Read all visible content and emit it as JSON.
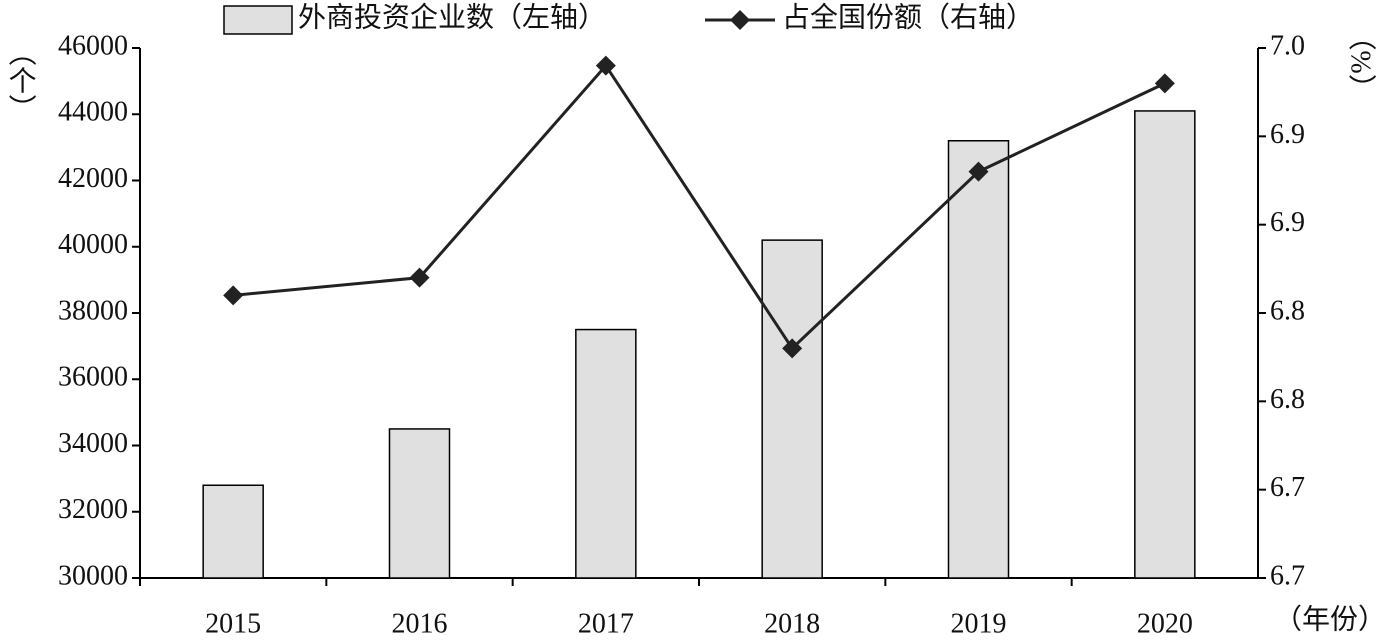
{
  "chart_data": {
    "type": "bar_line",
    "categories": [
      "2015",
      "2016",
      "2017",
      "2018",
      "2019",
      "2020"
    ],
    "series": [
      {
        "name": "外商投资企业数（左轴）",
        "color": "#e0e0e0",
        "values": [
          32800,
          34500,
          37500,
          40200,
          43200,
          44100
        ]
      },
      {
        "name": "占全国份额（右轴）",
        "color": "#222222",
        "axis": "y2",
        "values": [
          6.81,
          6.82,
          6.94,
          6.78,
          6.88,
          6.93
        ]
      }
    ],
    "y_label": "（个）",
    "y2_label": "（%）",
    "x_label": "（年份）",
    "ylim": [
      30000,
      46000
    ],
    "yticks": [
      30000,
      32000,
      34000,
      36000,
      38000,
      40000,
      42000,
      44000,
      46000
    ],
    "y2lim": [
      6.65,
      6.95
    ],
    "y2ticks": [
      {
        "value": 6.65,
        "label": "6.7"
      },
      {
        "value": 6.7,
        "label": "6.7"
      },
      {
        "value": 6.75,
        "label": "6.8"
      },
      {
        "value": 6.8,
        "label": "6.8"
      },
      {
        "value": 6.85,
        "label": "6.9"
      },
      {
        "value": 6.9,
        "label": "6.9"
      },
      {
        "value": 6.95,
        "label": "7.0"
      }
    ],
    "legend": "top"
  }
}
